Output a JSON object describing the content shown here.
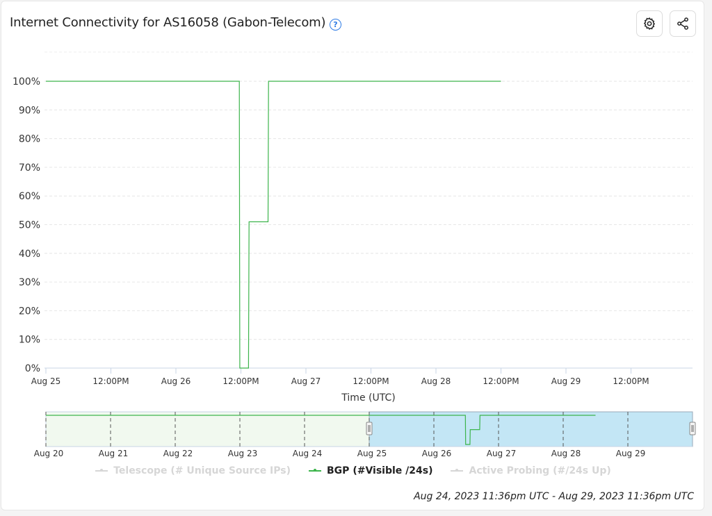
{
  "header": {
    "title": "Internet Connectivity for AS16058 (Gabon-Telecom)",
    "help_icon": "question-circle-icon",
    "settings_icon": "gear-icon",
    "share_icon": "share-icon"
  },
  "chart_data": {
    "type": "line",
    "xlabel": "Time (UTC)",
    "ylabel": "",
    "ylim": [
      0,
      100
    ],
    "y_ticks": [
      "0%",
      "10%",
      "20%",
      "30%",
      "40%",
      "50%",
      "60%",
      "70%",
      "80%",
      "90%",
      "100%"
    ],
    "x_ticks": [
      "Aug 25",
      "12:00PM",
      "Aug 26",
      "12:00PM",
      "Aug 27",
      "12:00PM",
      "Aug 28",
      "12:00PM",
      "Aug 29",
      "12:00PM"
    ],
    "x_range_hours": [
      0,
      120
    ],
    "grid": true,
    "series": [
      {
        "name": "BGP (#Visible /24s)",
        "color": "#3cb44b",
        "points": [
          [
            0,
            100
          ],
          [
            35.7,
            100
          ],
          [
            35.8,
            0
          ],
          [
            37.4,
            0
          ],
          [
            37.5,
            51
          ],
          [
            41.0,
            51
          ],
          [
            41.1,
            100
          ],
          [
            84.0,
            100
          ]
        ]
      }
    ],
    "legend": [
      {
        "label": "Telescope (# Unique Source IPs)",
        "active": false,
        "color": "#d6d6d6"
      },
      {
        "label": "BGP (#Visible /24s)",
        "active": true,
        "color": "#3cb44b"
      },
      {
        "label": "Active Probing (#/24s Up)",
        "active": false,
        "color": "#d6d6d6"
      }
    ],
    "navigator": {
      "ticks": [
        "Aug 20",
        "Aug 21",
        "Aug 22",
        "Aug 23",
        "Aug 24",
        "Aug 25",
        "Aug 26",
        "Aug 27",
        "Aug 28",
        "Aug 29"
      ],
      "selection_start": "Aug 25",
      "selection_end": "Aug 30"
    },
    "time_range": "Aug 24, 2023 11:36pm UTC - Aug 29, 2023 11:36pm UTC"
  }
}
